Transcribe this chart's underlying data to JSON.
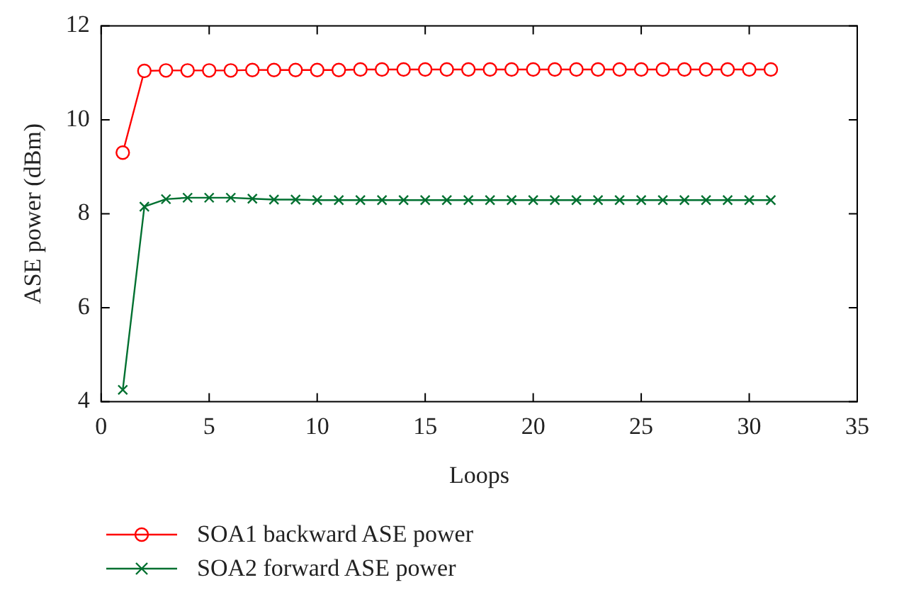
{
  "chart_data": {
    "type": "line",
    "xlabel": "Loops",
    "ylabel": "ASE power (dBm)",
    "x": [
      1,
      2,
      3,
      4,
      5,
      6,
      7,
      8,
      9,
      10,
      11,
      12,
      13,
      14,
      15,
      16,
      17,
      18,
      19,
      20,
      21,
      22,
      23,
      24,
      25,
      26,
      27,
      28,
      29,
      30,
      31
    ],
    "series": [
      {
        "name": "SOA1 backward ASE power",
        "color": "#ff0000",
        "marker": "circle",
        "values": [
          9.3,
          11.04,
          11.05,
          11.05,
          11.05,
          11.05,
          11.06,
          11.06,
          11.06,
          11.06,
          11.06,
          11.07,
          11.07,
          11.07,
          11.07,
          11.07,
          11.07,
          11.07,
          11.07,
          11.07,
          11.07,
          11.07,
          11.07,
          11.07,
          11.07,
          11.07,
          11.07,
          11.07,
          11.07,
          11.07,
          11.07
        ]
      },
      {
        "name": "SOA2 forward ASE power",
        "color": "#007030",
        "marker": "cross",
        "values": [
          4.25,
          8.15,
          8.31,
          8.34,
          8.34,
          8.34,
          8.32,
          8.3,
          8.3,
          8.29,
          8.29,
          8.29,
          8.29,
          8.29,
          8.29,
          8.29,
          8.29,
          8.29,
          8.29,
          8.29,
          8.29,
          8.29,
          8.29,
          8.29,
          8.29,
          8.29,
          8.29,
          8.29,
          8.29,
          8.29,
          8.29
        ]
      }
    ],
    "xlim": [
      0,
      35
    ],
    "xticks": [
      0,
      5,
      10,
      15,
      20,
      25,
      30,
      35
    ],
    "ylim": [
      4,
      12
    ],
    "yticks": [
      4,
      6,
      8,
      10,
      12
    ],
    "grid": false,
    "legend": "bottom left",
    "line_style": "solid"
  }
}
